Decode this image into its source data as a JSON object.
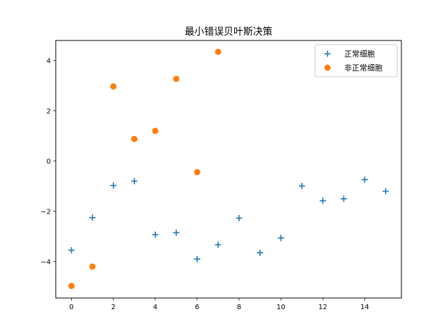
{
  "chart_data": {
    "type": "scatter",
    "title": "最小错误贝叶斯决策",
    "xlabel": "",
    "ylabel": "",
    "xlim": [
      -0.75,
      15.75
    ],
    "ylim": [
      -5.45,
      4.8
    ],
    "x_ticks": [
      0,
      2,
      4,
      6,
      8,
      10,
      12,
      14
    ],
    "y_ticks": [
      -4,
      -2,
      0,
      2,
      4
    ],
    "grid": false,
    "legend_position": "top-right",
    "series": [
      {
        "name": "正常细胞",
        "marker": "plus",
        "color": "#1f77b4",
        "x": [
          0,
          1,
          2,
          3,
          4,
          5,
          6,
          7,
          8,
          9,
          10,
          11,
          12,
          13,
          14,
          15
        ],
        "y": [
          -3.55,
          -2.25,
          -0.97,
          -0.8,
          -2.93,
          -2.85,
          -3.9,
          -3.33,
          -2.27,
          -3.65,
          -3.06,
          -0.99,
          -1.58,
          -1.5,
          -0.74,
          -1.2
        ]
      },
      {
        "name": "非正常细胞",
        "marker": "circle",
        "color": "#ff7f0e",
        "x": [
          0,
          1,
          2,
          3,
          4,
          5,
          6,
          7
        ],
        "y": [
          -4.97,
          -4.2,
          2.97,
          0.88,
          1.2,
          3.27,
          -0.44,
          4.35
        ]
      }
    ]
  }
}
